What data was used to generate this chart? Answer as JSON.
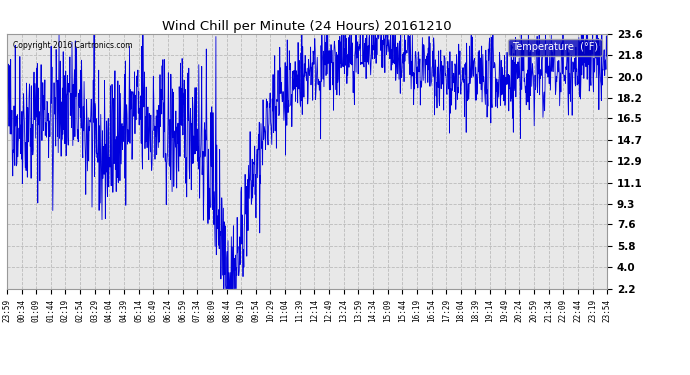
{
  "title": "Wind Chill per Minute (24 Hours) 20161210",
  "copyright": "Copyright 2016 Cartronics.com",
  "legend_label": "Temperature  (°F)",
  "legend_bg": "#0000bb",
  "legend_fg": "#ffffff",
  "line_color": "#0000dd",
  "bg_color": "#ffffff",
  "plot_bg_color": "#e8e8e8",
  "grid_color": "#bbbbbb",
  "yticks": [
    2.2,
    4.0,
    5.8,
    7.6,
    9.3,
    11.1,
    12.9,
    14.7,
    16.5,
    18.2,
    20.0,
    21.8,
    23.6
  ],
  "ymin": 2.2,
  "ymax": 23.6,
  "xtick_labels": [
    "23:59",
    "00:34",
    "01:09",
    "01:44",
    "02:19",
    "02:54",
    "03:29",
    "04:04",
    "04:39",
    "05:14",
    "05:49",
    "06:24",
    "06:59",
    "07:34",
    "08:09",
    "08:44",
    "09:19",
    "09:54",
    "10:29",
    "11:04",
    "11:39",
    "12:14",
    "12:49",
    "13:24",
    "13:59",
    "14:34",
    "15:09",
    "15:44",
    "16:19",
    "16:54",
    "17:29",
    "18:04",
    "18:39",
    "19:14",
    "19:49",
    "20:24",
    "20:59",
    "21:34",
    "22:09",
    "22:44",
    "23:19",
    "23:54"
  ],
  "n_points": 1440
}
